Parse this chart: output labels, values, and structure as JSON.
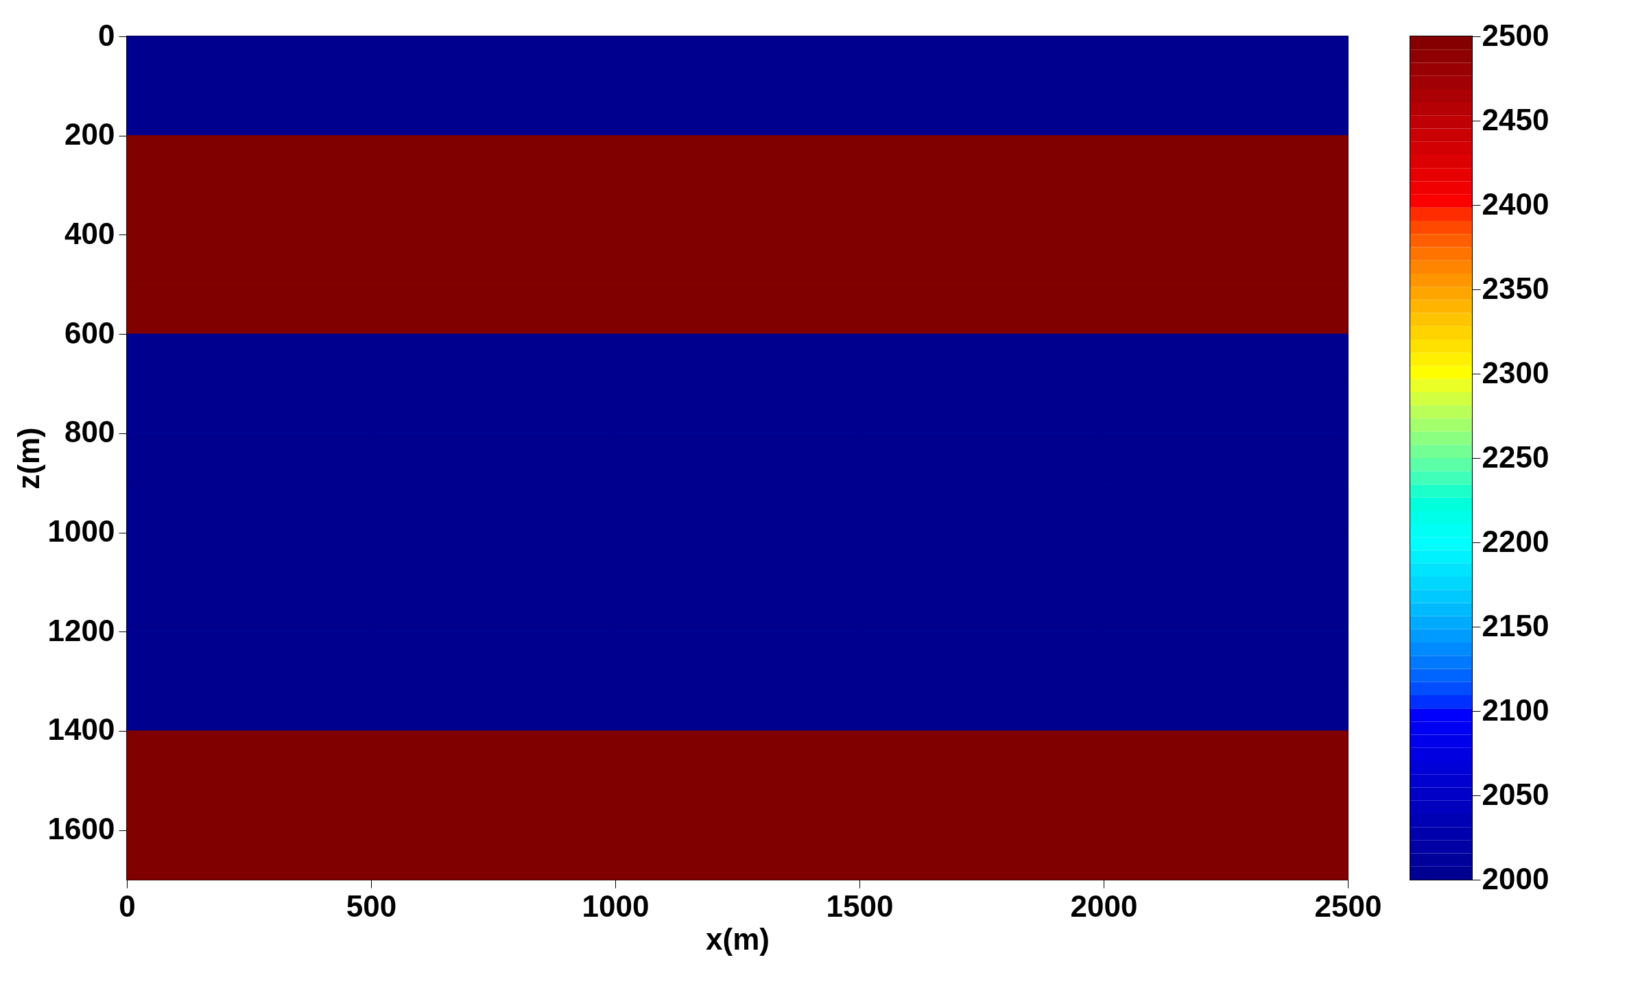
{
  "chart_data": {
    "type": "heatmap",
    "xlabel": "x(m)",
    "ylabel": "z(m)",
    "x": [
      250,
      750,
      1250,
      1750,
      2250
    ],
    "y": [
      50,
      150,
      250,
      350,
      450,
      550,
      650,
      750,
      850,
      950,
      1050,
      1150,
      1250,
      1350,
      1450,
      1550,
      1650
    ],
    "cells": [
      [
        2000,
        2000,
        2000,
        2000,
        2000
      ],
      [
        2000,
        2000,
        2000,
        2000,
        2000
      ],
      [
        2500,
        2500,
        2500,
        2500,
        2500
      ],
      [
        2500,
        2500,
        2500,
        2500,
        2500
      ],
      [
        2500,
        2500,
        2500,
        2500,
        2500
      ],
      [
        2500,
        2500,
        2500,
        2500,
        2500
      ],
      [
        2000,
        2000,
        2000,
        2000,
        2000
      ],
      [
        2000,
        2000,
        2000,
        2000,
        2000
      ],
      [
        2000,
        2000,
        2000,
        2000,
        2000
      ],
      [
        2000,
        2000,
        2000,
        2000,
        2000
      ],
      [
        2000,
        2000,
        2000,
        2000,
        2000
      ],
      [
        2000,
        2000,
        2000,
        2000,
        2000
      ],
      [
        2000,
        2000,
        2000,
        2000,
        2000
      ],
      [
        2000,
        2000,
        2000,
        2000,
        2000
      ],
      [
        2500,
        2500,
        2500,
        2500,
        2500
      ],
      [
        2500,
        2500,
        2500,
        2500,
        2500
      ],
      [
        2500,
        2500,
        2500,
        2500,
        2500
      ]
    ],
    "xlim": [
      0,
      2500
    ],
    "xticks": [
      0,
      500,
      1000,
      1500,
      2000,
      2500
    ],
    "ylim": [
      1700,
      0
    ],
    "yticks": [
      0,
      200,
      400,
      600,
      800,
      1000,
      1200,
      1400,
      1600
    ],
    "clim": [
      2000,
      2500
    ],
    "cticks": [
      2000,
      2050,
      2100,
      2150,
      2200,
      2250,
      2300,
      2350,
      2400,
      2450,
      2500
    ],
    "colors": [
      "#00008f",
      "#0000ff",
      "#00ffff",
      "#ffff00",
      "#ff0000",
      "#800000"
    ],
    "grid": false
  }
}
